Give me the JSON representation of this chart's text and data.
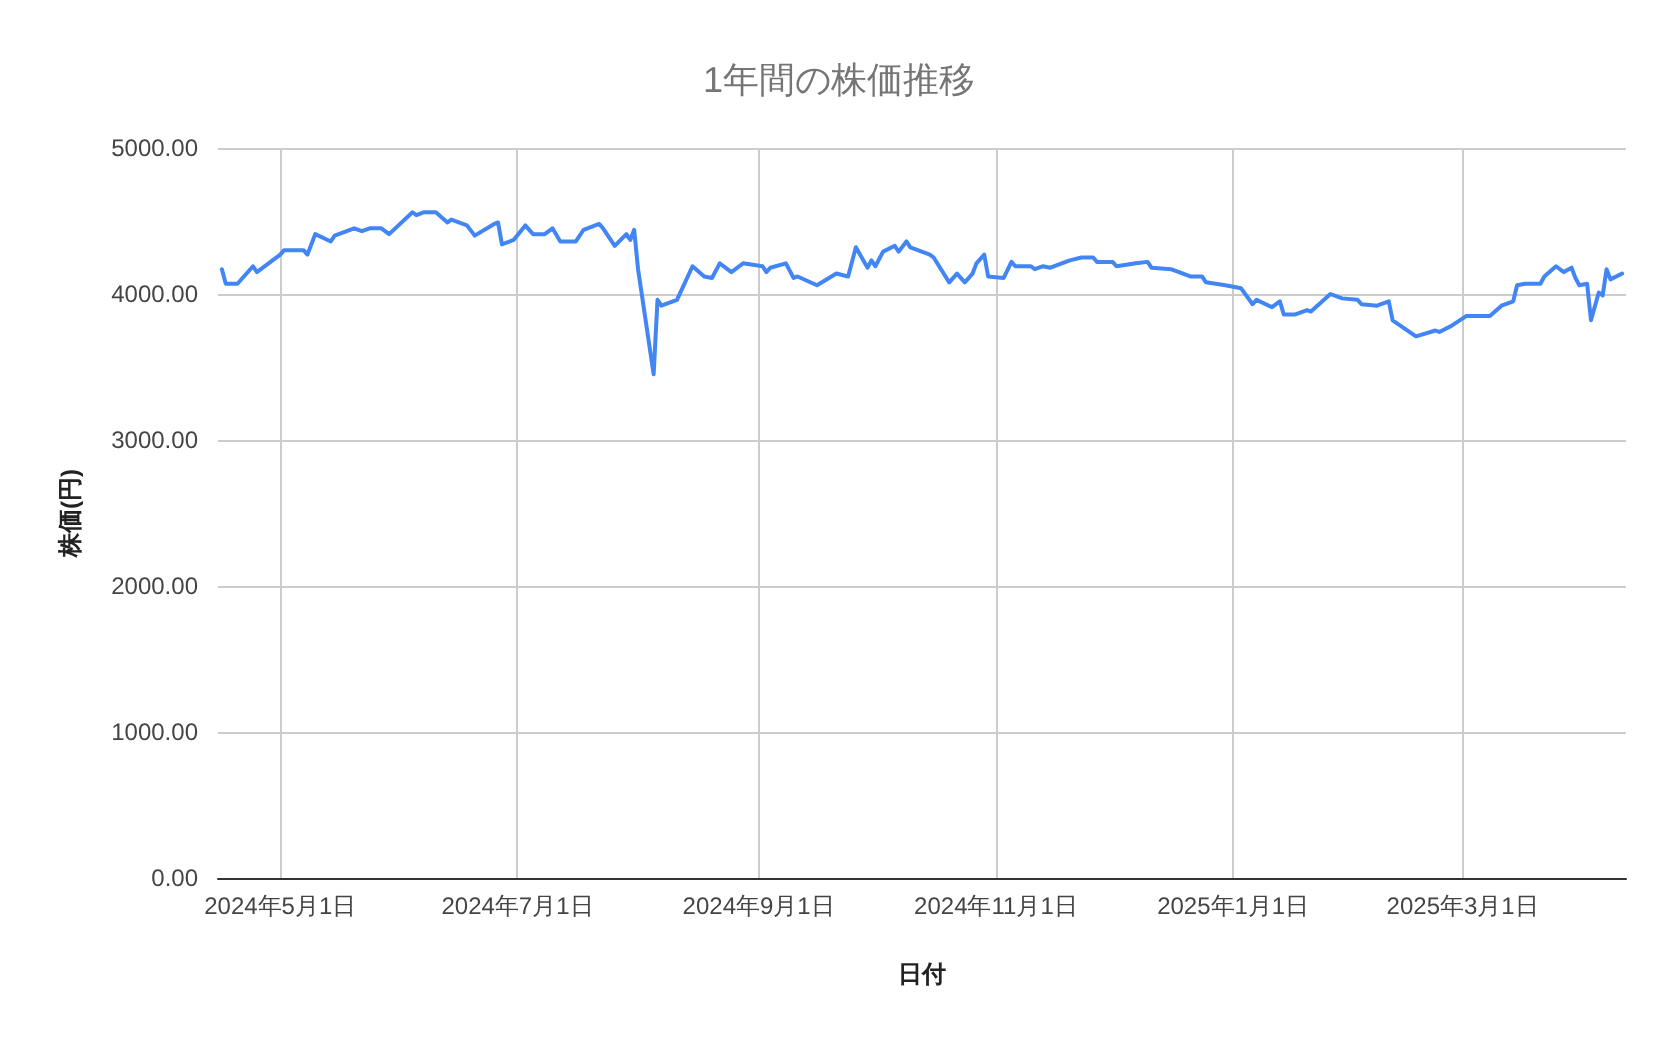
{
  "chart_data": {
    "type": "line",
    "title": "1年間の株価推移",
    "xlabel": "日付",
    "ylabel": "株価(円)",
    "x": [
      "2024-04-16",
      "2024-04-17",
      "2024-04-20",
      "2024-04-24",
      "2024-04-25",
      "2024-05-01",
      "2024-05-02",
      "2024-05-07",
      "2024-05-08",
      "2024-05-10",
      "2024-05-14",
      "2024-05-15",
      "2024-05-20",
      "2024-05-22",
      "2024-05-24",
      "2024-05-27",
      "2024-05-29",
      "2024-06-04",
      "2024-06-05",
      "2024-06-07",
      "2024-06-10",
      "2024-06-13",
      "2024-06-14",
      "2024-06-18",
      "2024-06-20",
      "2024-06-25",
      "2024-06-26",
      "2024-06-27",
      "2024-06-30",
      "2024-07-03",
      "2024-07-05",
      "2024-07-08",
      "2024-07-10",
      "2024-07-12",
      "2024-07-16",
      "2024-07-18",
      "2024-07-22",
      "2024-07-23",
      "2024-07-26",
      "2024-07-29",
      "2024-07-30",
      "2024-07-31",
      "2024-08-01",
      "2024-08-05",
      "2024-08-06",
      "2024-08-07",
      "2024-08-11",
      "2024-08-15",
      "2024-08-18",
      "2024-08-20",
      "2024-08-22",
      "2024-08-25",
      "2024-08-28",
      "2024-09-02",
      "2024-09-03",
      "2024-09-04",
      "2024-09-08",
      "2024-09-10",
      "2024-09-11",
      "2024-09-16",
      "2024-09-21",
      "2024-09-24",
      "2024-09-26",
      "2024-09-29",
      "2024-09-30",
      "2024-10-01",
      "2024-10-03",
      "2024-10-06",
      "2024-10-07",
      "2024-10-09",
      "2024-10-10",
      "2024-10-15",
      "2024-10-16",
      "2024-10-20",
      "2024-10-22",
      "2024-10-24",
      "2024-10-26",
      "2024-10-27",
      "2024-10-29",
      "2024-10-30",
      "2024-11-03",
      "2024-11-05",
      "2024-11-06",
      "2024-11-10",
      "2024-11-11",
      "2024-11-13",
      "2024-11-15",
      "2024-11-20",
      "2024-11-23",
      "2024-11-26",
      "2024-11-27",
      "2024-12-01",
      "2024-12-02",
      "2024-12-07",
      "2024-12-10",
      "2024-12-11",
      "2024-12-16",
      "2024-12-21",
      "2024-12-24",
      "2024-12-25",
      "2024-12-30",
      "2025-01-03",
      "2025-01-06",
      "2025-01-07",
      "2025-01-11",
      "2025-01-13",
      "2025-01-14",
      "2025-01-17",
      "2025-01-20",
      "2025-01-21",
      "2025-01-26",
      "2025-01-29",
      "2025-02-02",
      "2025-02-03",
      "2025-02-07",
      "2025-02-10",
      "2025-02-11",
      "2025-02-17",
      "2025-02-22",
      "2025-02-23",
      "2025-02-26",
      "2025-03-02",
      "2025-03-08",
      "2025-03-11",
      "2025-03-14",
      "2025-03-15",
      "2025-03-17",
      "2025-03-21",
      "2025-03-22",
      "2025-03-25",
      "2025-03-27",
      "2025-03-29",
      "2025-03-30",
      "2025-03-31",
      "2025-04-02",
      "2025-04-03",
      "2025-04-05",
      "2025-04-06",
      "2025-04-07",
      "2025-04-08",
      "2025-04-11"
    ],
    "series": [
      {
        "color": "#4285f4",
        "values": [
          4170,
          4070,
          4070,
          4190,
          4150,
          4270,
          4300,
          4300,
          4270,
          4410,
          4360,
          4400,
          4450,
          4430,
          4450,
          4450,
          4410,
          4560,
          4540,
          4560,
          4560,
          4490,
          4510,
          4470,
          4400,
          4480,
          4490,
          4340,
          4370,
          4470,
          4410,
          4410,
          4450,
          4360,
          4360,
          4440,
          4480,
          4450,
          4330,
          4410,
          4370,
          4440,
          4170,
          3450,
          3960,
          3920,
          3960,
          4190,
          4120,
          4110,
          4210,
          4150,
          4210,
          4190,
          4150,
          4180,
          4210,
          4110,
          4120,
          4060,
          4140,
          4120,
          4320,
          4180,
          4230,
          4190,
          4290,
          4330,
          4290,
          4360,
          4320,
          4270,
          4250,
          4080,
          4140,
          4080,
          4140,
          4210,
          4270,
          4120,
          4110,
          4220,
          4190,
          4190,
          4170,
          4190,
          4180,
          4230,
          4250,
          4250,
          4220,
          4220,
          4190,
          4210,
          4220,
          4180,
          4170,
          4120,
          4120,
          4080,
          4060,
          4040,
          3930,
          3960,
          3910,
          3950,
          3860,
          3860,
          3890,
          3880,
          4000,
          3970,
          3960,
          3930,
          3920,
          3950,
          3820,
          3710,
          3750,
          3740,
          3780,
          3850,
          3850,
          3920,
          3950,
          4060,
          4070,
          4070,
          4120,
          4190,
          4150,
          4180,
          4110,
          4060,
          4070,
          3820,
          4010,
          3990,
          4170,
          4100,
          4140
        ]
      }
    ],
    "xlim": [
      "2024-04-15",
      "2025-04-12"
    ],
    "xticks": [
      {
        "value": "2024-05-01",
        "label": "2024年5月1日"
      },
      {
        "value": "2024-07-01",
        "label": "2024年7月1日"
      },
      {
        "value": "2024-09-01",
        "label": "2024年9月1日"
      },
      {
        "value": "2024-11-01",
        "label": "2024年11月1日"
      },
      {
        "value": "2025-01-01",
        "label": "2025年1月1日"
      },
      {
        "value": "2025-03-01",
        "label": "2025年3月1日"
      }
    ],
    "ylim": [
      0,
      5000
    ],
    "yticks": [
      {
        "value": 0,
        "label": "0.00"
      },
      {
        "value": 1000,
        "label": "1000.00"
      },
      {
        "value": 2000,
        "label": "2000.00"
      },
      {
        "value": 3000,
        "label": "3000.00"
      },
      {
        "value": 4000,
        "label": "4000.00"
      },
      {
        "value": 5000,
        "label": "5000.00"
      }
    ],
    "grid": true,
    "marker": "none",
    "line_style": "solid"
  }
}
